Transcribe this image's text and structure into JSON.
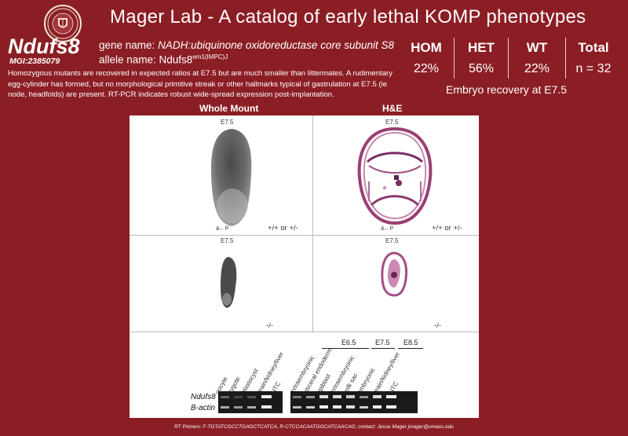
{
  "header": {
    "title": "Mager Lab - A catalog of early lethal KOMP phenotypes",
    "seal_text": "UNIVERSITY OF MASSACHUSETTS AMHERST"
  },
  "gene": {
    "symbol": "Ndufs8",
    "mgi": "MGI:2385079",
    "gene_name_label": "gene name: ",
    "gene_name": "NADH:ubiquinone oxidoreductase core subunit S8",
    "allele_label": "allele name: Ndufs8",
    "allele_sup": "em1(IMPC)J"
  },
  "description": "Homozygous mutants are recovered in expected ratios at E7.5 but are much smaller than littermates. A rudimentary egg-cylinder has formed, but no morphological primitive streak or other hallmarks typical of gastrulation at E7.5 (ie node, headfolds) are present. RT-PCR indicates robust wide-spread expression post-implantation.",
  "stats": {
    "hom_label": "HOM",
    "hom_value": "22%",
    "het_label": "HET",
    "het_value": "56%",
    "wt_label": "WT",
    "wt_value": "22%",
    "total_label": "Total",
    "total_value": "n = 32",
    "recovery": "Embryo recovery at E7.5"
  },
  "figure": {
    "whole_mount_label": "Whole Mount",
    "he_label": "H&E",
    "stage": "E7.5",
    "geno_wt": "+/+ or +/-",
    "geno_mut": "-/-",
    "axis_label": "A←P"
  },
  "gel": {
    "lanes": [
      "oocyte",
      "zygote",
      "blastocyst",
      "brain/kidney/liver",
      "NTC",
      "extraembryonic",
      "visceral endoderm",
      "epiblast",
      "extraembryonic",
      "yolk sac",
      "embryonic",
      "brain/kidney/liver",
      "NTC"
    ],
    "stages": [
      "E6.5",
      "E7.5",
      "E8.5"
    ],
    "rows": [
      "Ndufs8",
      "B-actin"
    ]
  },
  "footer": "RT Primers: F-TGTATCGCCTGAGCTCATCA, R-CTCCACAATGGCATCAACAG; contact: Jesse Mager jmager@umass.edu"
}
